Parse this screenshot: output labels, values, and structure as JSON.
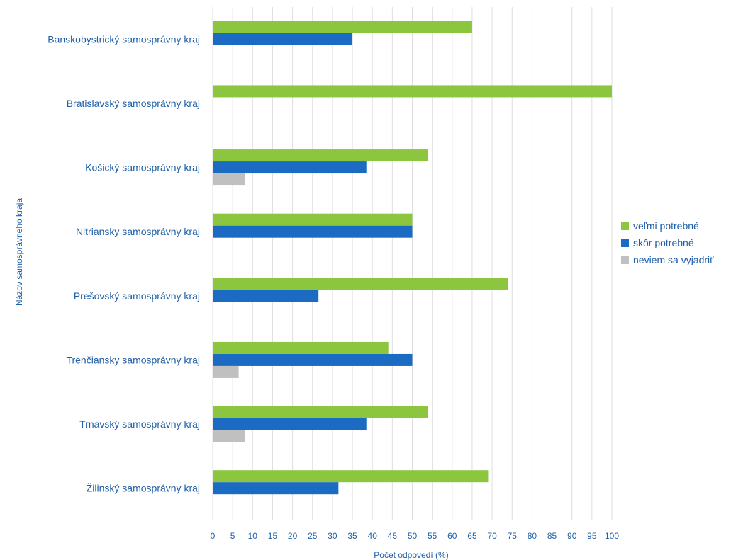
{
  "chart_data": {
    "type": "bar",
    "orientation": "horizontal",
    "xlabel": "Počet odpovedí (%)",
    "ylabel": "Názov samosprávneho kraja",
    "xlim": [
      0,
      100
    ],
    "x_ticks": [
      0,
      5,
      10,
      15,
      20,
      25,
      30,
      35,
      40,
      45,
      50,
      55,
      60,
      65,
      70,
      75,
      80,
      85,
      90,
      95,
      100
    ],
    "grid": "vertical",
    "legend_position": "right",
    "categories": [
      "Banskobystrický samosprávny kraj",
      "Bratislavský samosprávny kraj",
      "Košický samosprávny kraj",
      "Nitriansky samosprávny kraj",
      "Prešovský samosprávny kraj",
      "Trenčiansky samosprávny kraj",
      "Trnavský samosprávny kraj",
      "Žilinský samosprávny kraj"
    ],
    "series": [
      {
        "name": "veľmi potrebné",
        "color": "#8cc63f",
        "values": [
          65,
          100,
          54,
          50,
          74,
          44,
          54,
          69
        ]
      },
      {
        "name": "skôr potrebné",
        "color": "#1a6bc1",
        "values": [
          35,
          0,
          38.5,
          50,
          26.5,
          50,
          38.5,
          31.5
        ]
      },
      {
        "name": "neviem sa vyjadriť",
        "color": "#c0c0c0",
        "values": [
          0,
          0,
          8,
          0,
          0,
          6.5,
          8,
          0
        ]
      }
    ]
  }
}
